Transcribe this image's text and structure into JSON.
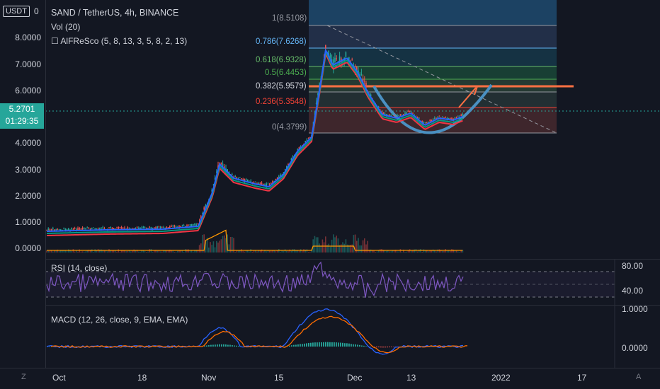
{
  "header": {
    "unit_button": "USDT",
    "zero_label": "0",
    "symbol_title": "SAND / TetherUS, 4h, BINANCE",
    "volume_legend": "Vol (20)",
    "indicator_legend": "☐ AlFReSco (5, 8, 13, 3, 5, 8, 2, 13)"
  },
  "price_axis": {
    "ticks": [
      "8.0000",
      "7.0000",
      "6.0000",
      "4.0000",
      "3.0000",
      "2.0000",
      "1.0000",
      "0.0000"
    ],
    "current_price": "5.2701",
    "countdown": "01:29:35"
  },
  "fib_levels": [
    {
      "label": "1(8.5108)",
      "color": "#9598a1"
    },
    {
      "label": "0.786(7.6268)",
      "color": "#64b5f6"
    },
    {
      "label": "0.618(6.9328)",
      "color": "#66bb6a"
    },
    {
      "label": "0.5(6.4453)",
      "color": "#4caf50"
    },
    {
      "label": "0.382(5.9579)",
      "color": "#d1d4dc"
    },
    {
      "label": "0.236(5.3548)",
      "color": "#f44336"
    },
    {
      "label": "0(4.3799)",
      "color": "#9598a1"
    }
  ],
  "rsi": {
    "legend": "RSI (14, close)",
    "upper": "80.00",
    "lower": "40.00",
    "color": "#7e57c2"
  },
  "macd": {
    "legend": "MACD (12, 26, close, 9, EMA, EMA)",
    "upper": "1.0000",
    "lower": "0.0000"
  },
  "time_axis": {
    "labels": [
      "Oct",
      "18",
      "Nov",
      "15",
      "Dec",
      "13",
      "2022",
      "17"
    ],
    "corner_left": "Z",
    "corner_right": "A"
  },
  "colors": {
    "background": "#131722",
    "up": "#26a69a",
    "down": "#ef5350",
    "fib_resistance": "#ff7043",
    "cup_arc": "#4a90c2",
    "ema_fast": "#2962ff",
    "ema_slow": "#f23645",
    "ema_mid": "#089981"
  }
}
